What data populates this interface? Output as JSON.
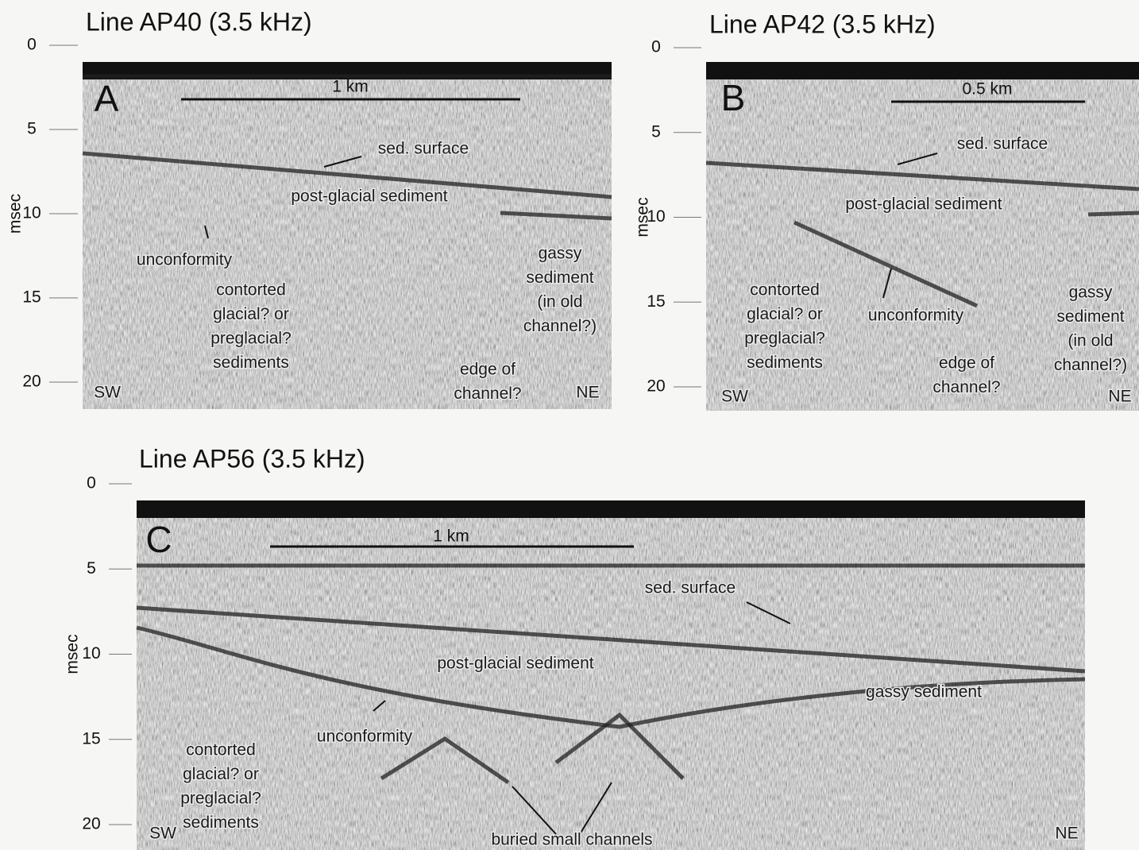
{
  "panels": [
    {
      "title": "Line AP40 (3.5 kHz)",
      "letter": "A",
      "scale": "1 km",
      "axis_label": "msec",
      "yticks": [
        0,
        5,
        10,
        15,
        20
      ],
      "labels": [
        [
          "sed. surface"
        ],
        [
          "post-glacial sediment"
        ],
        [
          "unconformity"
        ],
        [
          "contorted",
          "glacial? or",
          "preglacial?",
          "sediments"
        ],
        [
          "gassy",
          "sediment",
          "(in old",
          "channel?)"
        ],
        [
          "edge of",
          "channel?"
        ],
        [
          "SW"
        ],
        [
          "NE"
        ]
      ]
    },
    {
      "title": "Line AP42 (3.5 kHz)",
      "letter": "B",
      "scale": "0.5 km",
      "axis_label": "msec",
      "yticks": [
        0,
        5,
        10,
        15,
        20
      ],
      "labels": [
        [
          "sed. surface"
        ],
        [
          "post-glacial sediment"
        ],
        [
          "unconformity"
        ],
        [
          "contorted",
          "glacial? or",
          "preglacial?",
          "sediments"
        ],
        [
          "gassy",
          "sediment",
          "(in old",
          "channel?)"
        ],
        [
          "edge of",
          "channel?"
        ],
        [
          "SW"
        ],
        [
          "NE"
        ]
      ]
    },
    {
      "title": "Line AP56 (3.5 kHz)",
      "letter": "C",
      "scale": "1 km",
      "axis_label": "msec",
      "yticks": [
        0,
        5,
        10,
        15,
        20
      ],
      "labels": [
        [
          "sed. surface"
        ],
        [
          "post-glacial sediment"
        ],
        [
          "gassy sediment"
        ],
        [
          "unconformity"
        ],
        [
          "contorted",
          "glacial? or",
          "preglacial?",
          "sediments"
        ],
        [
          "buried small channels"
        ],
        [
          "SW"
        ],
        [
          "NE"
        ]
      ]
    }
  ]
}
